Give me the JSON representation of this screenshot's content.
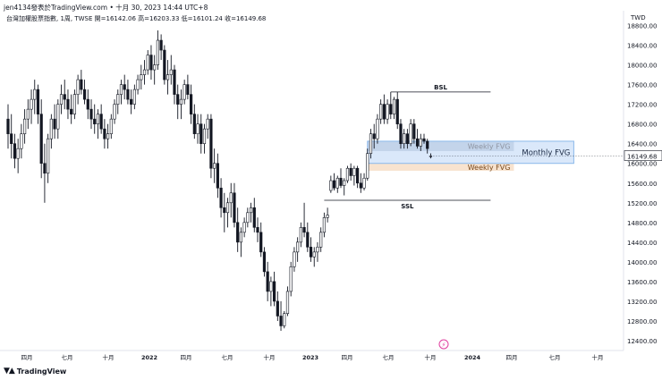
{
  "header": {
    "credit": "jen4134發表於TradingView.com • 十月 30, 2023 14:44 UTC+8",
    "info": "台灣加權股票指數, 1周, TWSE  開=16142.06  高=16203.33  低=16101.24  收=16149.68",
    "currency": "TWD",
    "brand": "TradingView"
  },
  "chart_data": {
    "type": "candlestick",
    "title": "台灣加權股票指數, 1周, TWSE",
    "ohlc": {
      "open": 16142.06,
      "high": 16203.33,
      "low": 16101.24,
      "close": 16149.68
    },
    "ylim": [
      12200,
      19100
    ],
    "y_ticks": [
      12400,
      12800,
      13200,
      13600,
      14000,
      14400,
      14800,
      15200,
      15600,
      16000,
      16400,
      16800,
      17200,
      17600,
      18000,
      18400,
      18800
    ],
    "y_tick_labels": [
      "12400.00",
      "12800.00",
      "13200.00",
      "13600.00",
      "14000.00",
      "14400.00",
      "14800.00",
      "15200.00",
      "15600.00",
      "16000.00",
      "16400.00",
      "16800.00",
      "17200.00",
      "17600.00",
      "18000.00",
      "18400.00",
      "18800.00"
    ],
    "x_tick_labels": [
      "四月",
      "七月",
      "十月",
      "2022",
      "四月",
      "七月",
      "十月",
      "2023",
      "四月",
      "七月",
      "十月",
      "2024",
      "四月",
      "七月",
      "十月"
    ],
    "last_price_label": "16149.68",
    "colors": {
      "up": "#ffffff",
      "down": "#131722",
      "edge": "#131722"
    },
    "series": [
      {
        "open": 16900,
        "high": 17200,
        "low": 16300,
        "close": 16600
      },
      {
        "open": 16600,
        "high": 17000,
        "low": 16100,
        "close": 16400
      },
      {
        "open": 16400,
        "high": 16600,
        "low": 15900,
        "close": 16100
      },
      {
        "open": 16100,
        "high": 16500,
        "low": 15800,
        "close": 16300
      },
      {
        "open": 16300,
        "high": 16800,
        "low": 16100,
        "close": 16600
      },
      {
        "open": 16600,
        "high": 17100,
        "low": 16400,
        "close": 16900
      },
      {
        "open": 16900,
        "high": 17300,
        "low": 16700,
        "close": 17100
      },
      {
        "open": 17100,
        "high": 17500,
        "low": 16800,
        "close": 17300
      },
      {
        "open": 17300,
        "high": 17700,
        "low": 17000,
        "close": 17500
      },
      {
        "open": 17500,
        "high": 17600,
        "low": 16800,
        "close": 17000
      },
      {
        "open": 17000,
        "high": 17300,
        "low": 15700,
        "close": 16000
      },
      {
        "open": 16000,
        "high": 16400,
        "low": 15200,
        "close": 15800
      },
      {
        "open": 15800,
        "high": 16600,
        "low": 15600,
        "close": 16500
      },
      {
        "open": 16500,
        "high": 17000,
        "low": 16300,
        "close": 16900
      },
      {
        "open": 16900,
        "high": 17200,
        "low": 16500,
        "close": 16700
      },
      {
        "open": 16700,
        "high": 17300,
        "low": 16500,
        "close": 17200
      },
      {
        "open": 17200,
        "high": 17600,
        "low": 17000,
        "close": 17400
      },
      {
        "open": 17400,
        "high": 17700,
        "low": 17100,
        "close": 17300
      },
      {
        "open": 17300,
        "high": 17500,
        "low": 16900,
        "close": 17100
      },
      {
        "open": 17100,
        "high": 17400,
        "low": 16800,
        "close": 17000
      },
      {
        "open": 17000,
        "high": 17500,
        "low": 16900,
        "close": 17400
      },
      {
        "open": 17400,
        "high": 17800,
        "low": 17200,
        "close": 17700
      },
      {
        "open": 17700,
        "high": 17900,
        "low": 17400,
        "close": 17500
      },
      {
        "open": 17500,
        "high": 17700,
        "low": 17200,
        "close": 17300
      },
      {
        "open": 17300,
        "high": 17500,
        "low": 16900,
        "close": 17100
      },
      {
        "open": 17100,
        "high": 17300,
        "low": 16700,
        "close": 16900
      },
      {
        "open": 16900,
        "high": 17200,
        "low": 16600,
        "close": 16800
      },
      {
        "open": 16800,
        "high": 17100,
        "low": 16500,
        "close": 17000
      },
      {
        "open": 17000,
        "high": 17200,
        "low": 16600,
        "close": 16700
      },
      {
        "open": 16700,
        "high": 16900,
        "low": 16300,
        "close": 16500
      },
      {
        "open": 16500,
        "high": 16800,
        "low": 16300,
        "close": 16600
      },
      {
        "open": 16600,
        "high": 17000,
        "low": 16500,
        "close": 16900
      },
      {
        "open": 16900,
        "high": 17300,
        "low": 16800,
        "close": 17200
      },
      {
        "open": 17200,
        "high": 17500,
        "low": 17000,
        "close": 17400
      },
      {
        "open": 17400,
        "high": 17700,
        "low": 17200,
        "close": 17600
      },
      {
        "open": 17600,
        "high": 17800,
        "low": 17300,
        "close": 17500
      },
      {
        "open": 17500,
        "high": 17700,
        "low": 17200,
        "close": 17300
      },
      {
        "open": 17300,
        "high": 17500,
        "low": 17000,
        "close": 17200
      },
      {
        "open": 17200,
        "high": 17600,
        "low": 17100,
        "close": 17500
      },
      {
        "open": 17500,
        "high": 17800,
        "low": 17400,
        "close": 17700
      },
      {
        "open": 17700,
        "high": 18000,
        "low": 17500,
        "close": 17800
      },
      {
        "open": 17800,
        "high": 18100,
        "low": 17600,
        "close": 17900
      },
      {
        "open": 17900,
        "high": 18300,
        "low": 17800,
        "close": 18200
      },
      {
        "open": 18200,
        "high": 18400,
        "low": 17700,
        "close": 17900
      },
      {
        "open": 17900,
        "high": 18200,
        "low": 17600,
        "close": 18000
      },
      {
        "open": 18000,
        "high": 18700,
        "low": 17900,
        "close": 18500
      },
      {
        "open": 18500,
        "high": 18620,
        "low": 18100,
        "close": 18300
      },
      {
        "open": 18300,
        "high": 18400,
        "low": 17600,
        "close": 17700
      },
      {
        "open": 17700,
        "high": 18100,
        "low": 17400,
        "close": 17800
      },
      {
        "open": 17800,
        "high": 18200,
        "low": 17600,
        "close": 17900
      },
      {
        "open": 17900,
        "high": 18000,
        "low": 17200,
        "close": 17400
      },
      {
        "open": 17400,
        "high": 17600,
        "low": 16900,
        "close": 17200
      },
      {
        "open": 17200,
        "high": 17500,
        "low": 16900,
        "close": 17300
      },
      {
        "open": 17300,
        "high": 17700,
        "low": 17200,
        "close": 17600
      },
      {
        "open": 17600,
        "high": 17800,
        "low": 17300,
        "close": 17400
      },
      {
        "open": 17400,
        "high": 17600,
        "low": 16800,
        "close": 17000
      },
      {
        "open": 17000,
        "high": 17200,
        "low": 16500,
        "close": 16600
      },
      {
        "open": 16600,
        "high": 17000,
        "low": 16400,
        "close": 16800
      },
      {
        "open": 16800,
        "high": 17000,
        "low": 16200,
        "close": 16400
      },
      {
        "open": 16400,
        "high": 16800,
        "low": 16200,
        "close": 16700
      },
      {
        "open": 16700,
        "high": 17000,
        "low": 16500,
        "close": 16900
      },
      {
        "open": 16900,
        "high": 17000,
        "low": 15700,
        "close": 15900
      },
      {
        "open": 15900,
        "high": 16300,
        "low": 15600,
        "close": 16000
      },
      {
        "open": 16000,
        "high": 16200,
        "low": 15300,
        "close": 15500
      },
      {
        "open": 15500,
        "high": 15700,
        "low": 14900,
        "close": 15100
      },
      {
        "open": 15100,
        "high": 15400,
        "low": 14600,
        "close": 15000
      },
      {
        "open": 15000,
        "high": 15300,
        "low": 14700,
        "close": 15200
      },
      {
        "open": 15200,
        "high": 15600,
        "low": 14900,
        "close": 15400
      },
      {
        "open": 15400,
        "high": 15600,
        "low": 14700,
        "close": 14800
      },
      {
        "open": 14800,
        "high": 15100,
        "low": 14200,
        "close": 14400
      },
      {
        "open": 14400,
        "high": 14700,
        "low": 14100,
        "close": 14600
      },
      {
        "open": 14600,
        "high": 14900,
        "low": 14500,
        "close": 14800
      },
      {
        "open": 14800,
        "high": 15100,
        "low": 14700,
        "close": 15000
      },
      {
        "open": 15000,
        "high": 15200,
        "low": 14800,
        "close": 15100
      },
      {
        "open": 15100,
        "high": 15300,
        "low": 14600,
        "close": 14700
      },
      {
        "open": 14700,
        "high": 14900,
        "low": 14400,
        "close": 14600
      },
      {
        "open": 14600,
        "high": 14800,
        "low": 14100,
        "close": 14200
      },
      {
        "open": 14200,
        "high": 14300,
        "low": 13700,
        "close": 13800
      },
      {
        "open": 13800,
        "high": 14000,
        "low": 13200,
        "close": 13400
      },
      {
        "open": 13400,
        "high": 13700,
        "low": 13100,
        "close": 13600
      },
      {
        "open": 13600,
        "high": 13800,
        "low": 13100,
        "close": 13200
      },
      {
        "open": 13200,
        "high": 13400,
        "low": 12800,
        "close": 12900
      },
      {
        "open": 12900,
        "high": 13200,
        "low": 12600,
        "close": 12700
      },
      {
        "open": 12700,
        "high": 13000,
        "low": 12650,
        "close": 12950
      },
      {
        "open": 12950,
        "high": 13500,
        "low": 12900,
        "close": 13400
      },
      {
        "open": 13400,
        "high": 14000,
        "low": 13300,
        "close": 13900
      },
      {
        "open": 13900,
        "high": 14300,
        "low": 13800,
        "close": 14200
      },
      {
        "open": 14200,
        "high": 14500,
        "low": 14000,
        "close": 14400
      },
      {
        "open": 14400,
        "high": 14800,
        "low": 14300,
        "close": 14700
      },
      {
        "open": 14700,
        "high": 15200,
        "low": 14500,
        "close": 14600
      },
      {
        "open": 14600,
        "high": 14800,
        "low": 14200,
        "close": 14300
      },
      {
        "open": 14300,
        "high": 14500,
        "low": 14000,
        "close": 14100
      },
      {
        "open": 14100,
        "high": 14300,
        "low": 13900,
        "close": 14200
      },
      {
        "open": 14200,
        "high": 14400,
        "low": 14000,
        "close": 14300
      },
      {
        "open": 14300,
        "high": 14700,
        "low": 14200,
        "close": 14600
      },
      {
        "open": 14600,
        "high": 15000,
        "low": 14500,
        "close": 14900
      },
      {
        "open": 14900,
        "high": 15100,
        "low": 14800,
        "close": 14950
      },
      {
        "open": 15450,
        "high": 15750,
        "low": 15400,
        "close": 15650
      },
      {
        "open": 15650,
        "high": 15800,
        "low": 15450,
        "close": 15500
      },
      {
        "open": 15500,
        "high": 15750,
        "low": 15400,
        "close": 15700
      },
      {
        "open": 15700,
        "high": 15900,
        "low": 15500,
        "close": 15550
      },
      {
        "open": 15550,
        "high": 15700,
        "low": 15350,
        "close": 15650
      },
      {
        "open": 15650,
        "high": 15950,
        "low": 15600,
        "close": 15900
      },
      {
        "open": 15900,
        "high": 16000,
        "low": 15650,
        "close": 15750
      },
      {
        "open": 15750,
        "high": 15950,
        "low": 15550,
        "close": 15900
      },
      {
        "open": 15900,
        "high": 15950,
        "low": 15500,
        "close": 15600
      },
      {
        "open": 15600,
        "high": 15800,
        "low": 15400,
        "close": 15500
      },
      {
        "open": 15500,
        "high": 15800,
        "low": 15450,
        "close": 15700
      },
      {
        "open": 15700,
        "high": 16300,
        "low": 15650,
        "close": 16200
      },
      {
        "open": 16200,
        "high": 16700,
        "low": 16100,
        "close": 16600
      },
      {
        "open": 16600,
        "high": 16800,
        "low": 16300,
        "close": 16500
      },
      {
        "open": 16500,
        "high": 17000,
        "low": 16400,
        "close": 16900
      },
      {
        "open": 16900,
        "high": 17300,
        "low": 16800,
        "close": 17200
      },
      {
        "open": 17200,
        "high": 17400,
        "low": 16800,
        "close": 16900
      },
      {
        "open": 16900,
        "high": 17300,
        "low": 16800,
        "close": 17200
      },
      {
        "open": 17200,
        "high": 17450,
        "low": 16900,
        "close": 17000
      },
      {
        "open": 17000,
        "high": 17350,
        "low": 16900,
        "close": 17300
      },
      {
        "open": 17300,
        "high": 17450,
        "low": 16700,
        "close": 16800
      },
      {
        "open": 16800,
        "high": 16900,
        "low": 16300,
        "close": 16400
      },
      {
        "open": 16400,
        "high": 16700,
        "low": 16300,
        "close": 16600
      },
      {
        "open": 16600,
        "high": 16700,
        "low": 16300,
        "close": 16400
      },
      {
        "open": 16400,
        "high": 16900,
        "low": 16350,
        "close": 16800
      },
      {
        "open": 16800,
        "high": 16900,
        "low": 16400,
        "close": 16500
      },
      {
        "open": 16500,
        "high": 16700,
        "low": 16300,
        "close": 16350
      },
      {
        "open": 16350,
        "high": 16600,
        "low": 16250,
        "close": 16500
      },
      {
        "open": 16500,
        "high": 16600,
        "low": 16400,
        "close": 16450
      },
      {
        "open": 16450,
        "high": 16500,
        "low": 16200,
        "close": 16300
      },
      {
        "open": 16142.06,
        "high": 16203.33,
        "low": 16101.24,
        "close": 16149.68
      }
    ],
    "annotations": [
      {
        "kind": "hline",
        "label": "BSL",
        "y": 17450,
        "x_start": 115,
        "x_end": 145
      },
      {
        "kind": "hline",
        "label": "SSL",
        "y": 15250,
        "x_start": 95,
        "x_end": 145
      },
      {
        "kind": "zone",
        "label": "Weekly FVG",
        "y_top": 16450,
        "y_bottom": 16250,
        "x_start": 108,
        "x_end": 152,
        "fill": "#bcc3cf",
        "text_color": "#8e95a3"
      },
      {
        "kind": "zone",
        "label": "Weekly FVG",
        "y_top": 16000,
        "y_bottom": 15850,
        "x_start": 108,
        "x_end": 152,
        "fill": "#f6d9bf",
        "text_color": "#7a4a1c"
      },
      {
        "kind": "zone",
        "label": "Monthly FVG",
        "y_top": 16450,
        "y_bottom": 16000,
        "x_start": 108,
        "x_end": 170,
        "fill": "#bcd6f5",
        "text_color": "#1b2a44",
        "outline": "#8bb8ea"
      }
    ],
    "grid": false,
    "legend": "none"
  }
}
